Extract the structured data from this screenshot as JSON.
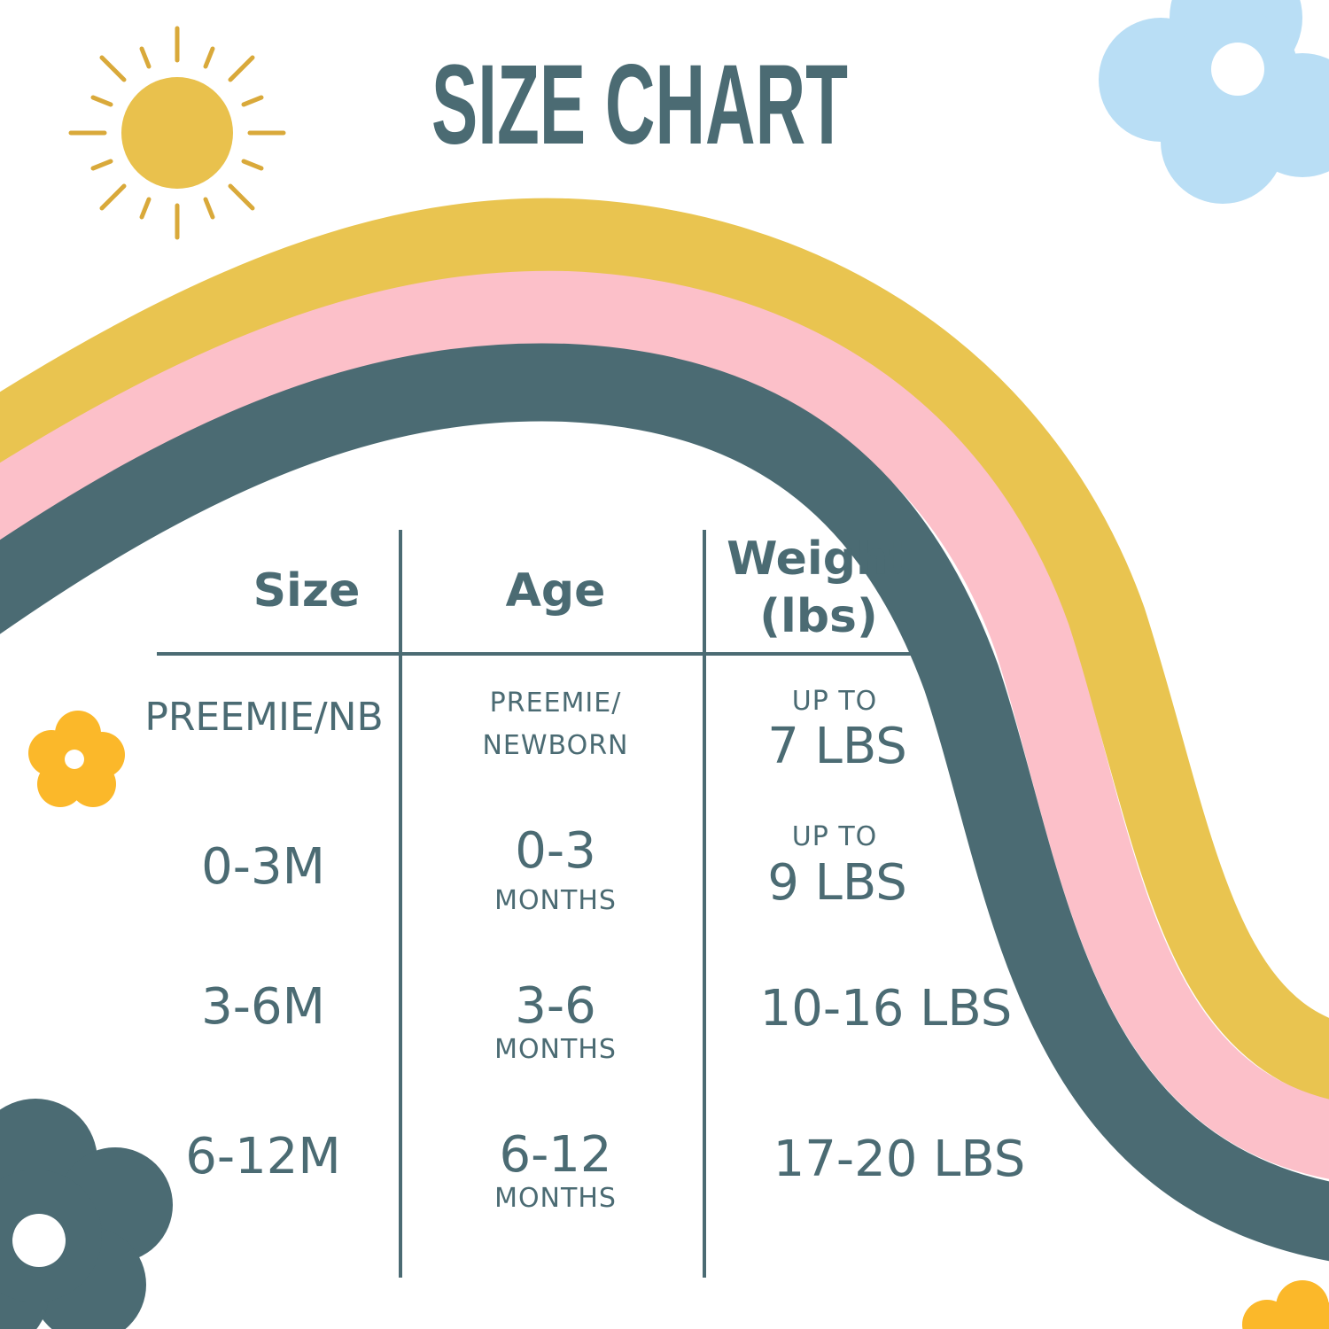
{
  "title": "SIZE CHART",
  "table": {
    "headers": [
      [
        "Size"
      ],
      [
        "Age"
      ],
      [
        "Weight",
        "(lbs)"
      ]
    ],
    "rows": [
      {
        "size": "PREEMIE/NB",
        "age": [
          "PREEMIE/",
          "NEWBORN"
        ],
        "weight": [
          "UP TO",
          "7 LBS"
        ]
      },
      {
        "size": "0-3M",
        "age": [
          "0-3",
          "MONTHS"
        ],
        "weight": [
          "UP TO",
          "9 LBS"
        ]
      },
      {
        "size": "3-6M",
        "age": [
          "3-6",
          "MONTHS"
        ],
        "weight": [
          "10-16 LBS"
        ]
      },
      {
        "size": "6-12M",
        "age": [
          "6-12",
          "MONTHS"
        ],
        "weight": [
          "17-20 LBS"
        ]
      }
    ]
  }
}
